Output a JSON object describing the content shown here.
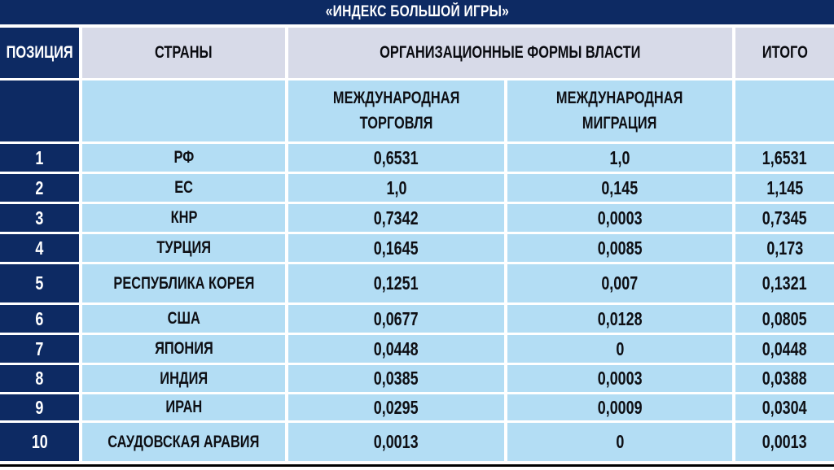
{
  "header": {
    "position": "ПОЗИЦИЯ",
    "countries": "СТРАНЫ",
    "org_forms": "ОРГАНИЗАЦИОННЫЕ ФОРМЫ ВЛАСТИ",
    "total": "ИТОГО",
    "trade": {
      "line1": "МЕЖДУНАРОДНАЯ",
      "line2": "ТОРГОВЛЯ"
    },
    "migration": {
      "line1": "МЕЖДУНАРОДНАЯ",
      "line2": "МИГРАЦИЯ"
    }
  },
  "chart_data": {
    "type": "table",
    "title": "«ИНДЕКС БОЛЬШОЙ ИГРЫ»",
    "column_group": {
      "label": "ОРГАНИЗАЦИОННЫЕ ФОРМЫ ВЛАСТИ",
      "spans": [
        "МЕЖДУНАРОДНАЯ ТОРГОВЛЯ",
        "МЕЖДУНАРОДНАЯ МИГРАЦИЯ"
      ]
    },
    "columns": [
      "ПОЗИЦИЯ",
      "СТРАНЫ",
      "МЕЖДУНАРОДНАЯ ТОРГОВЛЯ",
      "МЕЖДУНАРОДНАЯ МИГРАЦИЯ",
      "ИТОГО"
    ],
    "rows": [
      [
        "1",
        "РФ",
        "0,6531",
        "1,0",
        "1,6531"
      ],
      [
        "2",
        "ЕС",
        "1,0",
        "0,145",
        "1,145"
      ],
      [
        "3",
        "КНР",
        "0,7342",
        "0,0003",
        "0,7345"
      ],
      [
        "4",
        "ТУРЦИЯ",
        "0,1645",
        "0,0085",
        "0,173"
      ],
      [
        "5",
        "РЕСПУБЛИКА КОРЕЯ",
        "0,1251",
        "0,007",
        "0,1321"
      ],
      [
        "6",
        "США",
        "0,0677",
        "0,0128",
        "0,0805"
      ],
      [
        "7",
        "ЯПОНИЯ",
        "0,0448",
        "0",
        "0,0448"
      ],
      [
        "8",
        "ИНДИЯ",
        "0,0385",
        "0,0003",
        "0,0388"
      ],
      [
        "9",
        "ИРАН",
        "0,0295",
        "0,0009",
        "0,0304"
      ],
      [
        "10",
        "САУДОВСКАЯ АРАВИЯ",
        "0,0013",
        "0",
        "0,0013"
      ]
    ]
  },
  "colors": {
    "navy": "#0d2a63",
    "row_light_blue": "#b3ddf4",
    "header_lavender": "#d7dae8",
    "title_text": "#ffffff",
    "data_text": "#0e0f14",
    "separator": "#ffffff",
    "bottom_line": "#000000"
  }
}
